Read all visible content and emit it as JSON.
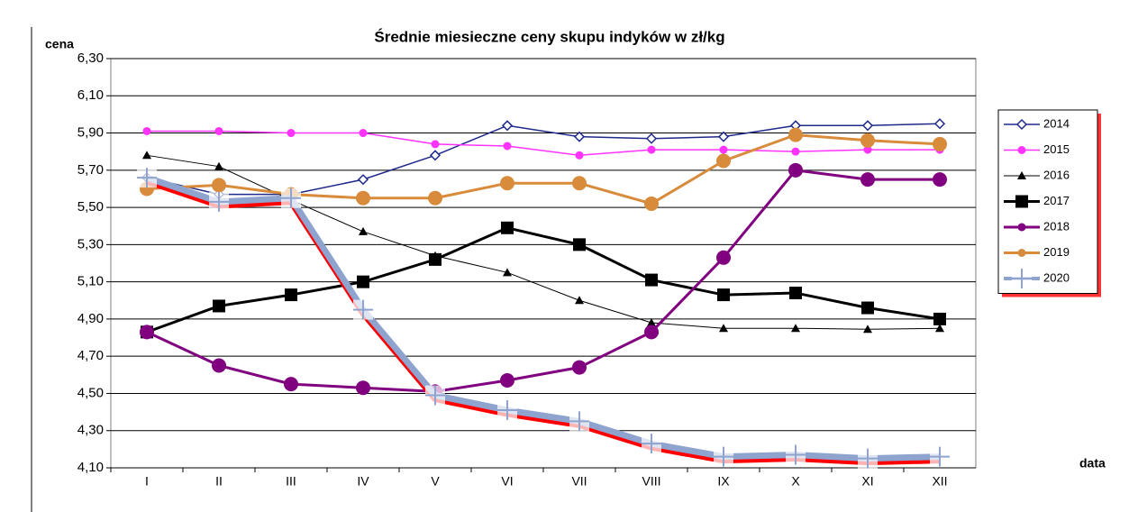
{
  "chart_data": {
    "type": "line",
    "title": "Średnie miesieczne ceny skupu indyków w zł/kg",
    "y_label": "cena",
    "x_label": "data",
    "categories": [
      "I",
      "II",
      "III",
      "IV",
      "V",
      "VI",
      "VII",
      "VIII",
      "IX",
      "X",
      "XI",
      "XII"
    ],
    "ylim": [
      4.1,
      6.3
    ],
    "yticks": [
      {
        "value": 4.1,
        "label": "4,10"
      },
      {
        "value": 4.3,
        "label": "4,30"
      },
      {
        "value": 4.5,
        "label": "4,50"
      },
      {
        "value": 4.7,
        "label": "4,70"
      },
      {
        "value": 4.9,
        "label": "4,90"
      },
      {
        "value": 5.1,
        "label": "5,10"
      },
      {
        "value": 5.3,
        "label": "5,30"
      },
      {
        "value": 5.5,
        "label": "5,50"
      },
      {
        "value": 5.7,
        "label": "5,70"
      },
      {
        "value": 5.9,
        "label": "5,90"
      },
      {
        "value": 6.1,
        "label": "6,10"
      },
      {
        "value": 6.3,
        "label": "6,30"
      }
    ],
    "grid": true,
    "legend": "right",
    "series": [
      {
        "name": "2014",
        "color": "#1f2a8a",
        "marker": "diamond",
        "line_width": 1.5,
        "values": [
          5.66,
          5.57,
          5.57,
          5.65,
          5.78,
          5.94,
          5.88,
          5.87,
          5.88,
          5.94,
          5.94,
          5.95
        ]
      },
      {
        "name": "2015",
        "color": "#ff33ff",
        "marker": "circle",
        "line_width": 1.5,
        "values": [
          5.91,
          5.91,
          5.9,
          5.9,
          5.84,
          5.83,
          5.78,
          5.81,
          5.81,
          5.8,
          5.81,
          5.81
        ]
      },
      {
        "name": "2016",
        "color": "#000000",
        "marker": "triangle",
        "line_width": 1,
        "values": [
          5.78,
          5.72,
          5.54,
          5.37,
          5.24,
          5.15,
          5.0,
          4.88,
          4.85,
          4.85,
          4.845,
          4.85
        ]
      },
      {
        "name": "2017",
        "color": "#000000",
        "marker": "square",
        "line_width": 3,
        "values": [
          4.83,
          4.97,
          5.03,
          5.1,
          5.22,
          5.39,
          5.3,
          5.11,
          5.03,
          5.04,
          4.96,
          4.9
        ]
      },
      {
        "name": "2018",
        "color": "#800080",
        "marker": "circle",
        "line_width": 3,
        "values": [
          4.83,
          4.65,
          4.55,
          4.53,
          4.51,
          4.57,
          4.64,
          4.83,
          5.23,
          5.7,
          5.65,
          5.65
        ]
      },
      {
        "name": "2019",
        "color": "#d98b3c",
        "marker": "circle",
        "line_width": 3,
        "values": [
          5.6,
          5.62,
          5.57,
          5.55,
          5.55,
          5.63,
          5.63,
          5.52,
          5.75,
          5.89,
          5.86,
          5.84
        ]
      },
      {
        "name": "2020",
        "color": "#8fa3cf",
        "marker": "plus",
        "line_width": 7,
        "shadow": "#ff0000",
        "values": [
          5.66,
          5.53,
          5.55,
          4.95,
          4.49,
          4.41,
          4.35,
          4.23,
          4.16,
          4.17,
          4.15,
          4.16
        ]
      }
    ]
  }
}
